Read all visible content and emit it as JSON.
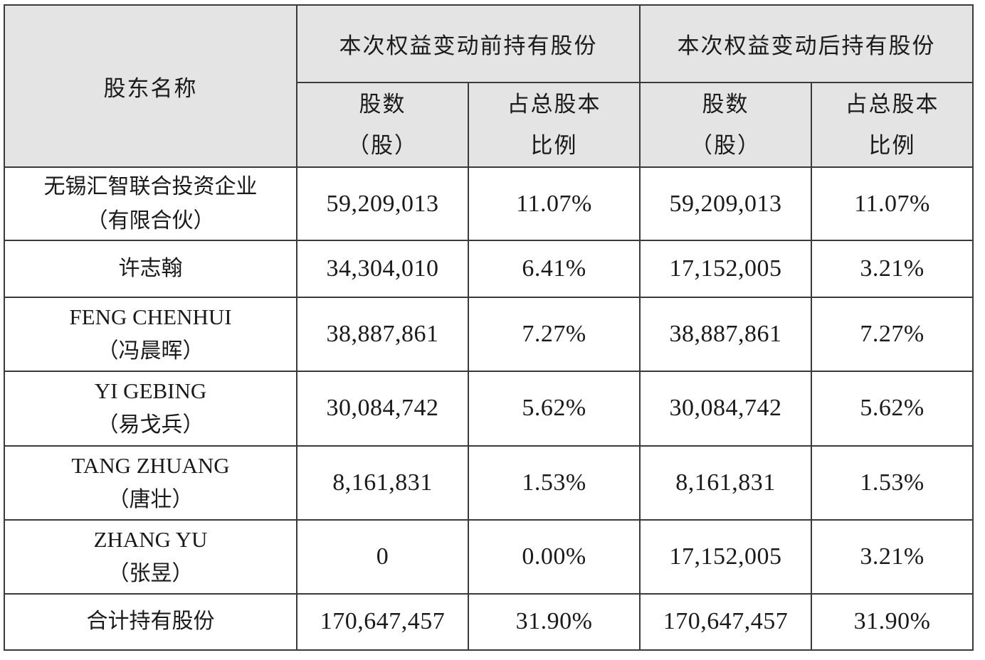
{
  "table": {
    "header": {
      "shareholder_name": "股东名称",
      "before_group": "本次权益变动前持有股份",
      "after_group": "本次权益变动后持有股份",
      "shares_line1": "股数",
      "shares_line2": "（股）",
      "ratio_line1": "占总股本",
      "ratio_line2": "比例"
    },
    "rows": [
      {
        "name_line1": "无锡汇智联合投资企业",
        "name_line2": "（有限合伙）",
        "before_shares": "59,209,013",
        "before_ratio": "11.07%",
        "after_shares": "59,209,013",
        "after_ratio": "11.07%"
      },
      {
        "name_line1": "许志翰",
        "name_line2": "",
        "before_shares": "34,304,010",
        "before_ratio": "6.41%",
        "after_shares": "17,152,005",
        "after_ratio": "3.21%"
      },
      {
        "name_line1": "FENG CHENHUI",
        "name_line2": "（冯晨晖）",
        "before_shares": "38,887,861",
        "before_ratio": "7.27%",
        "after_shares": "38,887,861",
        "after_ratio": "7.27%"
      },
      {
        "name_line1": "YI GEBING",
        "name_line2": "（易戈兵）",
        "before_shares": "30,084,742",
        "before_ratio": "5.62%",
        "after_shares": "30,084,742",
        "after_ratio": "5.62%"
      },
      {
        "name_line1": "TANG ZHUANG",
        "name_line2": "（唐壮）",
        "before_shares": "8,161,831",
        "before_ratio": "1.53%",
        "after_shares": "8,161,831",
        "after_ratio": "1.53%"
      },
      {
        "name_line1": "ZHANG YU",
        "name_line2": "（张昱）",
        "before_shares": "0",
        "before_ratio": "0.00%",
        "after_shares": "17,152,005",
        "after_ratio": "3.21%"
      }
    ],
    "total": {
      "label": "合计持有股份",
      "before_shares": "170,647,457",
      "before_ratio": "31.90%",
      "after_shares": "170,647,457",
      "after_ratio": "31.90%"
    }
  },
  "colors": {
    "header_bg": "#e4e4e4",
    "border": "#3a3a3a",
    "text": "#1a1a1a"
  }
}
